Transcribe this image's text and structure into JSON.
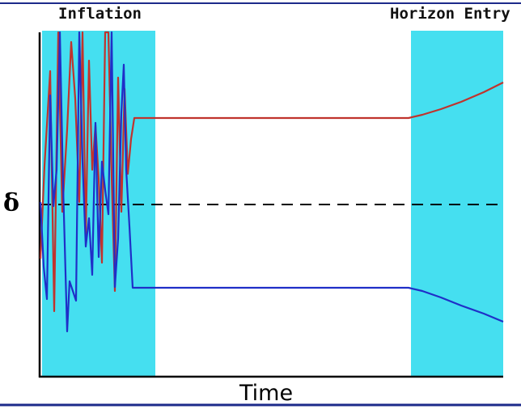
{
  "labels": {
    "region_left": "Inflation",
    "region_right": "Horizon Entry",
    "y_axis": "δ",
    "x_axis": "Time"
  },
  "colors": {
    "shade": "#45dff0",
    "mode_one": "#c0332d",
    "mode_two": "#1f2fc8",
    "axis": "#000000",
    "frame_lines": "#1c2a8a"
  }
}
